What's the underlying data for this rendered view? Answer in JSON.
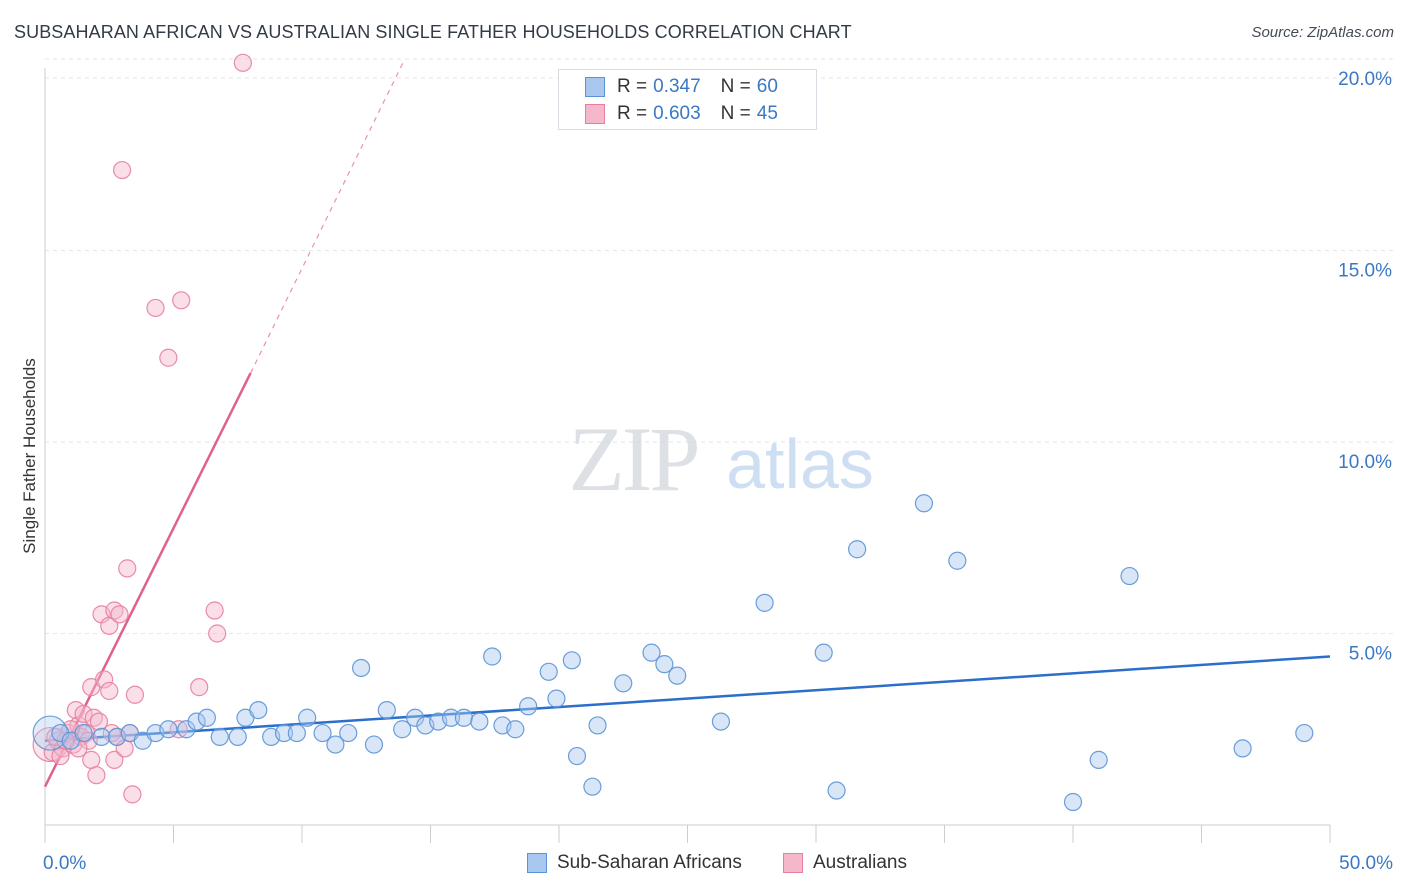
{
  "title": "SUBSAHARAN AFRICAN VS AUSTRALIAN SINGLE FATHER HOUSEHOLDS CORRELATION CHART",
  "source": "Source: ZipAtlas.com",
  "legend": {
    "r_label": "R =",
    "n_label": "N =",
    "rows": [
      {
        "r": "0.347",
        "n": "60"
      },
      {
        "r": "0.603",
        "n": "45"
      }
    ]
  },
  "watermark": {
    "zip": "ZIP",
    "atlas": "atlas"
  },
  "colors": {
    "blue_fill": "#a9c8f0",
    "blue_stroke": "#5b93d6",
    "blue_line": "#2b6fca",
    "pink_fill": "#f5b8cb",
    "pink_stroke": "#e77fa0",
    "pink_line": "#e0628c",
    "tick_label": "#3b78c4",
    "grid": "#e3e6ea"
  },
  "chart_data": {
    "type": "scatter",
    "title": "SUBSAHARAN AFRICAN VS AUSTRALIAN SINGLE FATHER HOUSEHOLDS CORRELATION CHART",
    "xlabel": "",
    "ylabel": "Single Father Households",
    "xlim": [
      0,
      50
    ],
    "ylim": [
      0,
      20.4
    ],
    "x_tick_labels": [
      "0.0%",
      "50.0%"
    ],
    "y_ticks": [
      5,
      10,
      15,
      20
    ],
    "y_tick_labels": [
      "5.0%",
      "10.0%",
      "15.0%",
      "20.0%"
    ],
    "grid": true,
    "series": [
      {
        "name": "Sub-Saharan Africans",
        "r": 0.347,
        "n": 60,
        "trend": {
          "x": [
            0,
            50
          ],
          "y": [
            2.2,
            4.4
          ],
          "dashed_extension": false
        },
        "points": [
          {
            "x": 0.2,
            "y": 2.4,
            "big": true
          },
          {
            "x": 0.6,
            "y": 2.4
          },
          {
            "x": 1.0,
            "y": 2.2
          },
          {
            "x": 1.5,
            "y": 2.4
          },
          {
            "x": 2.2,
            "y": 2.3
          },
          {
            "x": 2.8,
            "y": 2.3
          },
          {
            "x": 3.3,
            "y": 2.4
          },
          {
            "x": 3.8,
            "y": 2.2
          },
          {
            "x": 4.3,
            "y": 2.4
          },
          {
            "x": 4.8,
            "y": 2.5
          },
          {
            "x": 5.5,
            "y": 2.5
          },
          {
            "x": 5.9,
            "y": 2.7
          },
          {
            "x": 6.3,
            "y": 2.8
          },
          {
            "x": 6.8,
            "y": 2.3
          },
          {
            "x": 7.5,
            "y": 2.3
          },
          {
            "x": 7.8,
            "y": 2.8
          },
          {
            "x": 8.3,
            "y": 3.0
          },
          {
            "x": 8.8,
            "y": 2.3
          },
          {
            "x": 9.3,
            "y": 2.4
          },
          {
            "x": 9.8,
            "y": 2.4
          },
          {
            "x": 10.2,
            "y": 2.8
          },
          {
            "x": 10.8,
            "y": 2.4
          },
          {
            "x": 11.3,
            "y": 2.1
          },
          {
            "x": 11.8,
            "y": 2.4
          },
          {
            "x": 12.3,
            "y": 4.1
          },
          {
            "x": 12.8,
            "y": 2.1
          },
          {
            "x": 13.3,
            "y": 3.0
          },
          {
            "x": 13.9,
            "y": 2.5
          },
          {
            "x": 14.4,
            "y": 2.8
          },
          {
            "x": 14.8,
            "y": 2.6
          },
          {
            "x": 15.3,
            "y": 2.7
          },
          {
            "x": 15.8,
            "y": 2.8
          },
          {
            "x": 16.3,
            "y": 2.8
          },
          {
            "x": 16.9,
            "y": 2.7
          },
          {
            "x": 17.4,
            "y": 4.4
          },
          {
            "x": 17.8,
            "y": 2.6
          },
          {
            "x": 18.3,
            "y": 2.5
          },
          {
            "x": 18.8,
            "y": 3.1
          },
          {
            "x": 19.6,
            "y": 4.0
          },
          {
            "x": 19.9,
            "y": 3.3
          },
          {
            "x": 20.5,
            "y": 4.3
          },
          {
            "x": 20.7,
            "y": 1.8
          },
          {
            "x": 21.3,
            "y": 1.0
          },
          {
            "x": 21.5,
            "y": 2.6
          },
          {
            "x": 22.5,
            "y": 3.7
          },
          {
            "x": 23.6,
            "y": 4.5
          },
          {
            "x": 24.1,
            "y": 4.2
          },
          {
            "x": 24.6,
            "y": 3.9
          },
          {
            "x": 26.3,
            "y": 2.7
          },
          {
            "x": 28.0,
            "y": 5.8
          },
          {
            "x": 30.3,
            "y": 4.5
          },
          {
            "x": 30.8,
            "y": 0.9
          },
          {
            "x": 31.6,
            "y": 7.2
          },
          {
            "x": 34.2,
            "y": 8.4
          },
          {
            "x": 35.5,
            "y": 6.9
          },
          {
            "x": 40.0,
            "y": 0.6
          },
          {
            "x": 41.0,
            "y": 1.7
          },
          {
            "x": 42.2,
            "y": 6.5
          },
          {
            "x": 46.6,
            "y": 2.0
          },
          {
            "x": 49.0,
            "y": 2.4
          }
        ]
      },
      {
        "name": "Australians",
        "r": 0.603,
        "n": 45,
        "trend": {
          "x": [
            0,
            8
          ],
          "y": [
            1.0,
            11.8
          ],
          "dashed_extension": true,
          "dashed_to": {
            "x": 14,
            "y": 20.0
          }
        },
        "points": [
          {
            "x": 0.2,
            "y": 2.1,
            "big": true
          },
          {
            "x": 0.3,
            "y": 1.9
          },
          {
            "x": 0.5,
            "y": 2.2
          },
          {
            "x": 0.7,
            "y": 2.0
          },
          {
            "x": 0.9,
            "y": 2.4
          },
          {
            "x": 1.1,
            "y": 2.1
          },
          {
            "x": 1.2,
            "y": 3.0
          },
          {
            "x": 1.3,
            "y": 2.6
          },
          {
            "x": 1.4,
            "y": 2.3
          },
          {
            "x": 1.5,
            "y": 2.9
          },
          {
            "x": 1.6,
            "y": 2.4
          },
          {
            "x": 1.7,
            "y": 2.2
          },
          {
            "x": 1.8,
            "y": 1.7
          },
          {
            "x": 1.8,
            "y": 3.6
          },
          {
            "x": 1.9,
            "y": 2.8
          },
          {
            "x": 2.0,
            "y": 1.3
          },
          {
            "x": 2.1,
            "y": 2.7
          },
          {
            "x": 2.2,
            "y": 5.5
          },
          {
            "x": 2.3,
            "y": 3.8
          },
          {
            "x": 2.5,
            "y": 3.5
          },
          {
            "x": 2.5,
            "y": 5.2
          },
          {
            "x": 2.7,
            "y": 5.6
          },
          {
            "x": 2.7,
            "y": 1.7
          },
          {
            "x": 2.8,
            "y": 2.3
          },
          {
            "x": 2.9,
            "y": 5.5
          },
          {
            "x": 3.1,
            "y": 2.0
          },
          {
            "x": 3.2,
            "y": 6.7
          },
          {
            "x": 3.4,
            "y": 0.8
          },
          {
            "x": 3.5,
            "y": 3.4
          },
          {
            "x": 3.0,
            "y": 17.1
          },
          {
            "x": 4.3,
            "y": 13.5
          },
          {
            "x": 4.8,
            "y": 12.2
          },
          {
            "x": 5.3,
            "y": 13.7
          },
          {
            "x": 5.2,
            "y": 2.5
          },
          {
            "x": 6.0,
            "y": 3.6
          },
          {
            "x": 6.6,
            "y": 5.6
          },
          {
            "x": 6.7,
            "y": 5.0
          },
          {
            "x": 7.7,
            "y": 19.9
          },
          {
            "x": 0.4,
            "y": 2.3
          },
          {
            "x": 0.6,
            "y": 1.8
          },
          {
            "x": 1.0,
            "y": 2.5
          },
          {
            "x": 1.3,
            "y": 2.0
          },
          {
            "x": 2.6,
            "y": 2.4
          },
          {
            "x": 0.8,
            "y": 2.2
          },
          {
            "x": 3.3,
            "y": 2.4
          }
        ]
      }
    ]
  },
  "bottom_legend": [
    "Sub-Saharan Africans",
    "Australians"
  ]
}
